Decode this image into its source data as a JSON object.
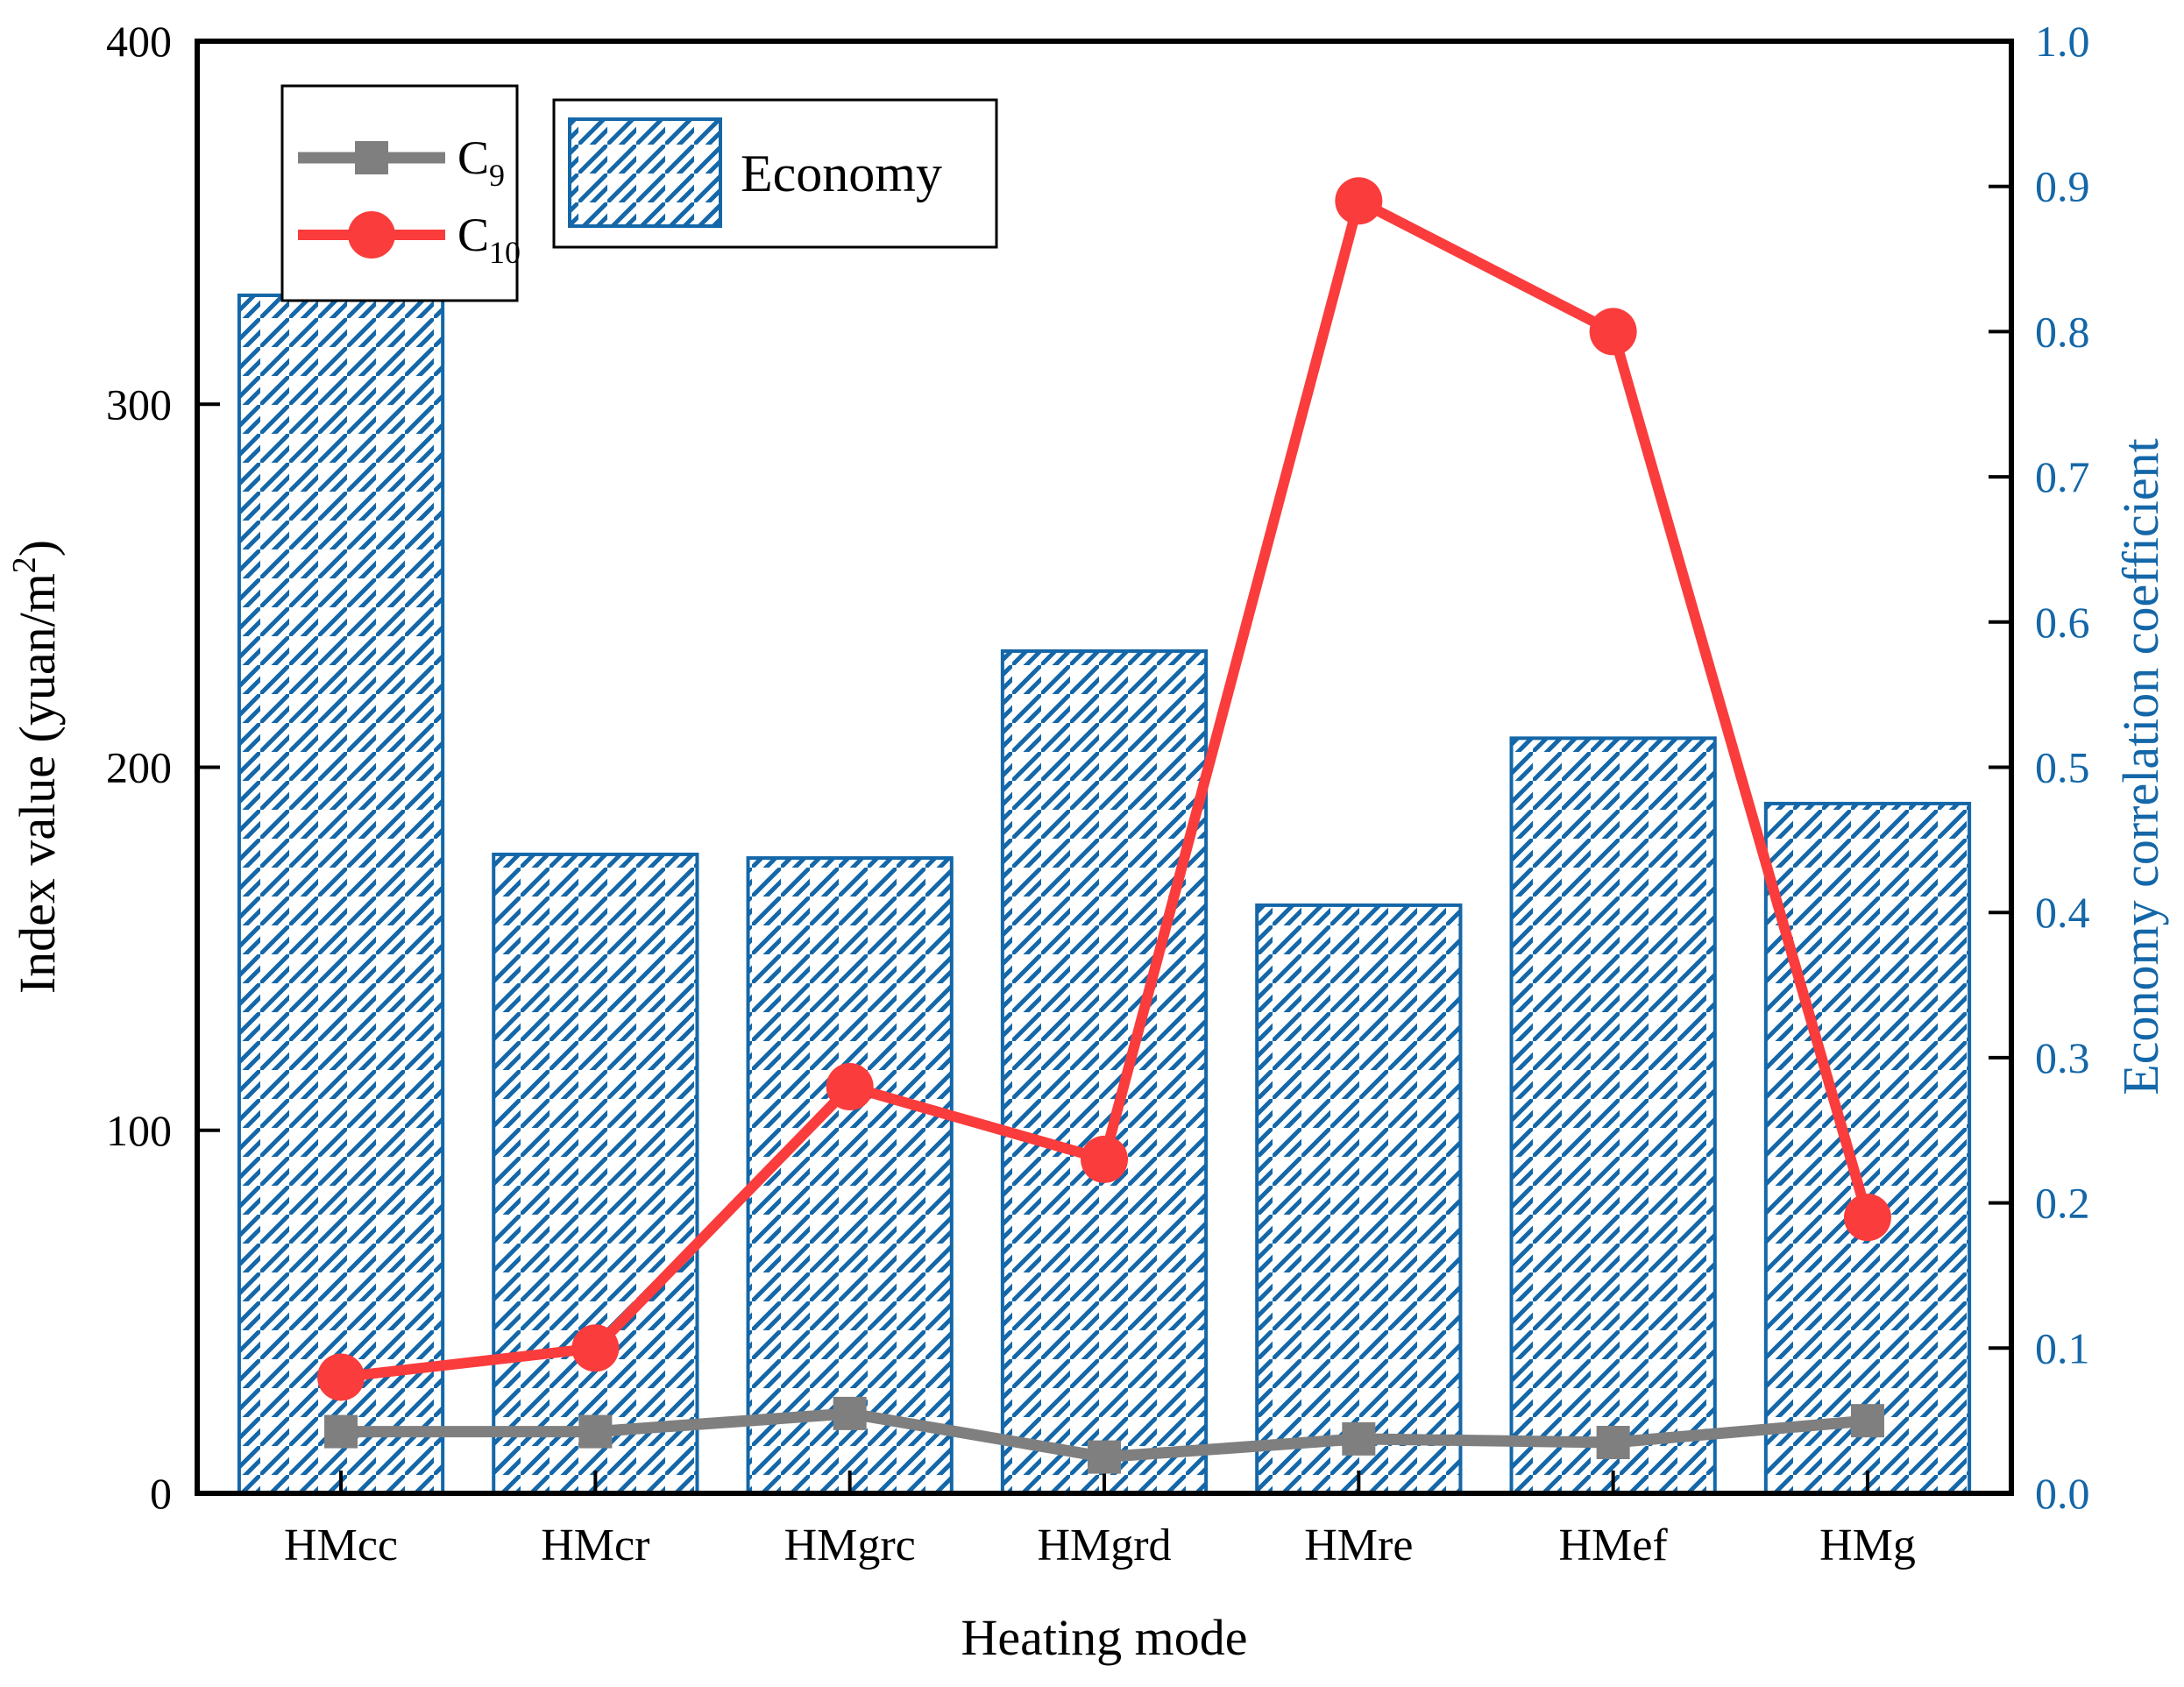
{
  "figure": {
    "background": "#ffffff",
    "frame_color": "#000000",
    "left_axis": {
      "label_pre": "Index value (yuan/m",
      "label_sup": "2",
      "label_post": ")",
      "tick_labels": [
        "0",
        "100",
        "200",
        "300",
        "400"
      ],
      "color": "#000000"
    },
    "right_axis": {
      "label": "Economy correlation coefficient",
      "tick_labels": [
        "0.0",
        "0.1",
        "0.2",
        "0.3",
        "0.4",
        "0.5",
        "0.6",
        "0.7",
        "0.8",
        "0.9",
        "1.0"
      ],
      "color": "#1467a8"
    },
    "x_axis": {
      "label": "Heating mode"
    },
    "legend": {
      "line_entries": [
        {
          "label_base": "C",
          "label_sub": "9",
          "color": "#7f7f7f",
          "marker": "square"
        },
        {
          "label_base": "C",
          "label_sub": "10",
          "color": "#fa3c3c",
          "marker": "circle"
        }
      ],
      "bar_entry": {
        "label": "Economy",
        "color": "#1467a8"
      }
    }
  },
  "chart_data": {
    "type": "bar",
    "subtype": "bar+line combo, dual y-axes",
    "categories": [
      "HMcc",
      "HMcr",
      "HMgrc",
      "HMgrd",
      "HMre",
      "HMef",
      "HMg"
    ],
    "series": [
      {
        "name": "Economy",
        "type": "bar",
        "axis": "left",
        "hatch": "///",
        "color": "#1467a8",
        "values": [
          330,
          176,
          175,
          232,
          162,
          208,
          190
        ]
      },
      {
        "name": "C9",
        "type": "line",
        "axis": "left",
        "marker": "square",
        "color": "#7f7f7f",
        "values": [
          17,
          17,
          22,
          10,
          15,
          14,
          20
        ]
      },
      {
        "name": "C10",
        "type": "line",
        "axis": "right",
        "marker": "circle",
        "color": "#fa3c3c",
        "values": [
          0.08,
          0.1,
          0.28,
          0.23,
          0.89,
          0.8,
          0.19
        ]
      }
    ],
    "title": "",
    "xlabel": "Heating mode",
    "ylabel_left": "Index value (yuan/m2)",
    "ylabel_right": "Economy correlation coefficient",
    "ylim_left": [
      0,
      400
    ],
    "yticks_left": [
      0,
      100,
      200,
      300,
      400
    ],
    "ylim_right": [
      0.0,
      1.0
    ],
    "yticks_right": [
      0.0,
      0.1,
      0.2,
      0.3,
      0.4,
      0.5,
      0.6,
      0.7,
      0.8,
      0.9,
      1.0
    ],
    "grid": false,
    "legend_position": "upper left, two boxes"
  }
}
